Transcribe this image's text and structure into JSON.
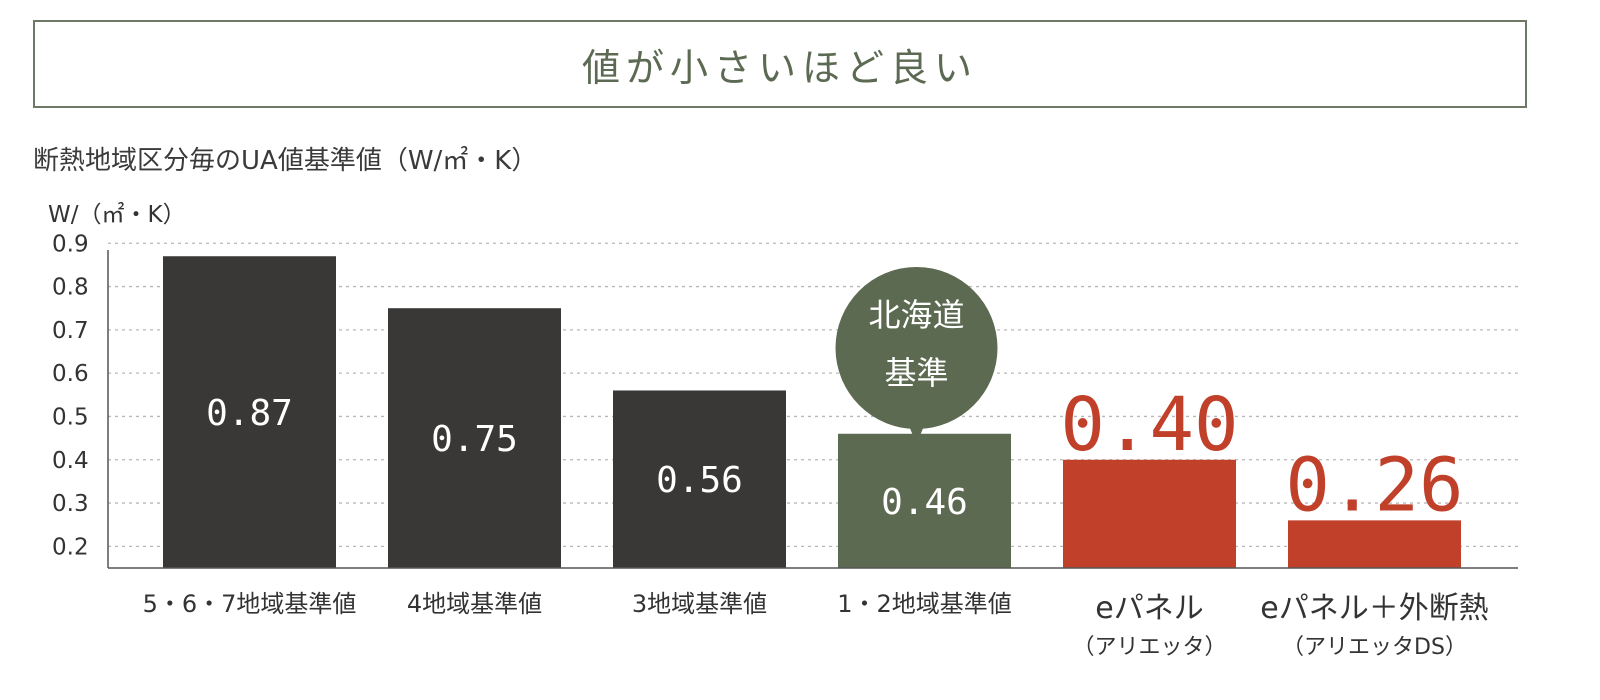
{
  "banner": {
    "text": "値が小さいほど良い"
  },
  "subtitle": "断熱地域区分毎のUA値基準値（W/㎡・K）",
  "chart_data": {
    "type": "bar",
    "ylabel": "W/（㎡・K）",
    "ylim": [
      0.15,
      0.92
    ],
    "yticks": [
      "0.9",
      "0.8",
      "0.7",
      "0.6",
      "0.5",
      "0.4",
      "0.3",
      "0.2"
    ],
    "grid": "horizontal-dotted",
    "bars": [
      {
        "category": "5・6・7地域基準値",
        "sublabel": "",
        "value": 0.87,
        "label": "0.87",
        "color": "#3a3836",
        "style": "inside"
      },
      {
        "category": "4地域基準値",
        "sublabel": "",
        "value": 0.75,
        "label": "0.75",
        "color": "#3a3836",
        "style": "inside"
      },
      {
        "category": "3地域基準値",
        "sublabel": "",
        "value": 0.56,
        "label": "0.56",
        "color": "#3a3836",
        "style": "inside"
      },
      {
        "category": "1・2地域基準値",
        "sublabel": "",
        "value": 0.46,
        "label": "0.46",
        "color": "#5d6a52",
        "style": "inside"
      },
      {
        "category": "eパネル",
        "sublabel": "（アリエッタ）",
        "value": 0.4,
        "label": "0.40",
        "color": "#c0402a",
        "style": "above"
      },
      {
        "category": "eパネル＋外断熱",
        "sublabel": "（アリエッタDS）",
        "value": 0.26,
        "label": "0.26",
        "color": "#c0402a",
        "style": "above"
      }
    ],
    "callout": {
      "lines": [
        "北海道",
        "基準"
      ],
      "color": "#5d6a52",
      "target": "1・2地域基準値"
    }
  }
}
